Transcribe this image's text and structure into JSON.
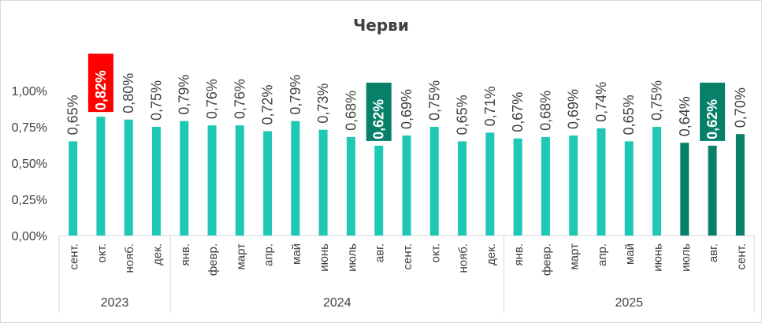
{
  "chart_data": {
    "type": "bar",
    "title": "Черви",
    "ylim": [
      0,
      1.0
    ],
    "yticks": [
      "0,00%",
      "0,25%",
      "0,50%",
      "0,75%",
      "1,00%"
    ],
    "ytick_values": [
      0,
      0.25,
      0.5,
      0.75,
      1.0
    ],
    "categories": [
      "сент.",
      "окт.",
      "нояб.",
      "дек.",
      "янв.",
      "февр.",
      "март",
      "апр.",
      "май",
      "июнь",
      "июль",
      "авг.",
      "сент.",
      "окт.",
      "нояб.",
      "дек.",
      "янв.",
      "февр.",
      "март",
      "апр.",
      "май",
      "июнь",
      "июль",
      "авг.",
      "сент."
    ],
    "values": [
      0.65,
      0.82,
      0.8,
      0.75,
      0.79,
      0.76,
      0.76,
      0.72,
      0.79,
      0.73,
      0.68,
      0.62,
      0.69,
      0.75,
      0.65,
      0.71,
      0.67,
      0.68,
      0.69,
      0.74,
      0.65,
      0.75,
      0.64,
      0.62,
      0.7
    ],
    "labels": [
      "0,65%",
      "0,82%",
      "0,80%",
      "0,75%",
      "0,79%",
      "0,76%",
      "0,76%",
      "0,72%",
      "0,79%",
      "0,73%",
      "0,68%",
      "0,62%",
      "0,69%",
      "0,75%",
      "0,65%",
      "0,71%",
      "0,67%",
      "0,68%",
      "0,69%",
      "0,74%",
      "0,65%",
      "0,75%",
      "0,64%",
      "0,62%",
      "0,70%"
    ],
    "years": [
      {
        "label": "2023",
        "start": 0,
        "end": 3
      },
      {
        "label": "2024",
        "start": 4,
        "end": 15
      },
      {
        "label": "2025",
        "start": 16,
        "end": 24
      }
    ],
    "bar_colors": [
      "#1ec8b4",
      "#1ec8b4",
      "#1ec8b4",
      "#1ec8b4",
      "#1ec8b4",
      "#1ec8b4",
      "#1ec8b4",
      "#1ec8b4",
      "#1ec8b4",
      "#1ec8b4",
      "#1ec8b4",
      "#1ec8b4",
      "#1ec8b4",
      "#1ec8b4",
      "#1ec8b4",
      "#1ec8b4",
      "#1ec8b4",
      "#1ec8b4",
      "#1ec8b4",
      "#1ec8b4",
      "#1ec8b4",
      "#1ec8b4",
      "#068068",
      "#068068",
      "#068068"
    ],
    "label_highlights": {
      "1": "#ff0000",
      "11": "#068068",
      "23": "#068068"
    },
    "gridlines": false,
    "legend": "none"
  }
}
